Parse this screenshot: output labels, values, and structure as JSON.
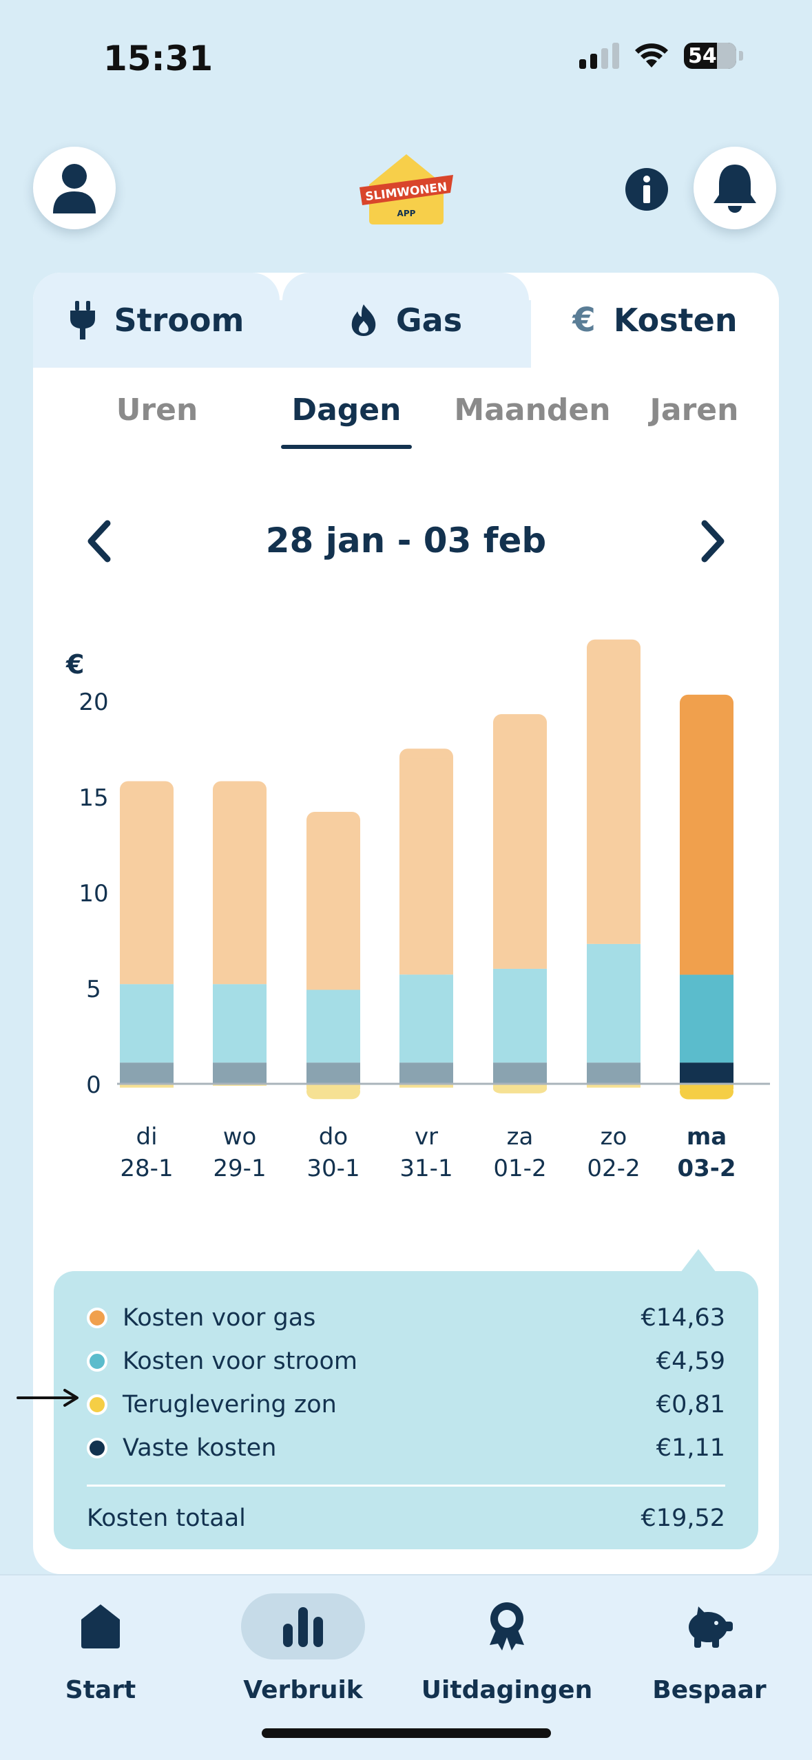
{
  "status_bar": {
    "time": "15:31",
    "battery": "54"
  },
  "header": {
    "logo_text": "SLIMWONEN",
    "logo_sub": "APP"
  },
  "energy_tabs": [
    {
      "label": "Stroom",
      "icon": "plug-icon"
    },
    {
      "label": "Gas",
      "icon": "flame-icon"
    },
    {
      "label": "Kosten",
      "icon": "euro-icon",
      "glyph": "€"
    }
  ],
  "period_tabs": [
    "Uren",
    "Dagen",
    "Maanden",
    "Jaren"
  ],
  "active_period": "Dagen",
  "date_range": "28 jan - 03 feb",
  "chart_data": {
    "type": "bar",
    "stacked": true,
    "ylabel": "€",
    "yticks": [
      0,
      5,
      10,
      15,
      20
    ],
    "ylim": [
      -1,
      25
    ],
    "categories": [
      {
        "day": "di",
        "date": "28-1"
      },
      {
        "day": "wo",
        "date": "29-1"
      },
      {
        "day": "do",
        "date": "30-1"
      },
      {
        "day": "vr",
        "date": "31-1"
      },
      {
        "day": "za",
        "date": "01-2"
      },
      {
        "day": "zo",
        "date": "02-2"
      },
      {
        "day": "ma",
        "date": "03-2"
      }
    ],
    "selected_index": 6,
    "series": [
      {
        "name": "Vaste kosten",
        "values": [
          1.11,
          1.11,
          1.11,
          1.11,
          1.11,
          1.11,
          1.11
        ],
        "color": "#8aa3b0",
        "color_selected": "#13324f"
      },
      {
        "name": "Kosten voor stroom",
        "values": [
          4.1,
          4.1,
          3.8,
          4.6,
          4.9,
          6.2,
          4.59
        ],
        "color": "#a5dde6",
        "color_selected": "#5bbccc"
      },
      {
        "name": "Kosten voor gas",
        "values": [
          10.6,
          10.6,
          9.3,
          11.8,
          13.3,
          15.9,
          14.63
        ],
        "color": "#f7cea0",
        "color_selected": "#f0a04d"
      },
      {
        "name": "Teruglevering zon",
        "values": [
          -0.2,
          -0.1,
          -0.8,
          -0.2,
          -0.5,
          -0.2,
          -0.81
        ],
        "color": "#f6e193",
        "color_selected": "#f5ce45"
      }
    ]
  },
  "legend": {
    "items": [
      {
        "label": "Kosten voor gas",
        "value": "€14,63",
        "color": "#f0a04d"
      },
      {
        "label": "Kosten voor stroom",
        "value": "€4,59",
        "color": "#5bbccc"
      },
      {
        "label": "Teruglevering zon",
        "value": "€0,81",
        "color": "#f5ce45"
      },
      {
        "label": "Vaste kosten",
        "value": "€1,11",
        "color": "#13324f"
      }
    ],
    "total_label": "Kosten totaal",
    "total_value": "€19,52"
  },
  "bottom_nav": [
    {
      "label": "Start",
      "icon": "home-icon"
    },
    {
      "label": "Verbruik",
      "icon": "bar-chart-icon",
      "active": true
    },
    {
      "label": "Uitdagingen",
      "icon": "award-icon"
    },
    {
      "label": "Bespaar",
      "icon": "piggy-bank-icon"
    }
  ]
}
